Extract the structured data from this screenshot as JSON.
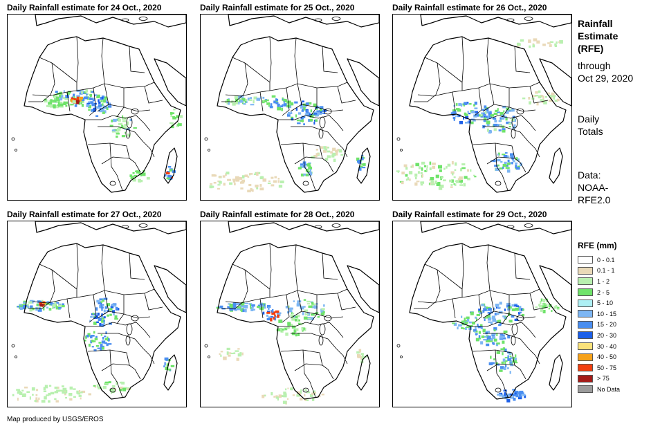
{
  "panels": [
    {
      "title": "Daily Rainfall estimate for 24 Oct., 2020"
    },
    {
      "title": "Daily Rainfall estimate for 25 Oct., 2020"
    },
    {
      "title": "Daily Rainfall estimate for 26 Oct., 2020"
    },
    {
      "title": "Daily Rainfall estimate for 27 Oct., 2020"
    },
    {
      "title": "Daily Rainfall estimate for 28 Oct., 2020"
    },
    {
      "title": "Daily Rainfall estimate for 29 Oct., 2020"
    }
  ],
  "sidebar": {
    "title_lines": [
      "Rainfall",
      "Estimate",
      "(RFE)"
    ],
    "through_lines": [
      "through",
      "Oct 29, 2020"
    ],
    "totals_lines": [
      "Daily",
      "Totals"
    ],
    "source_lines": [
      "Data:",
      "NOAA-",
      "RFE2.0"
    ]
  },
  "legend": {
    "title": "RFE (mm)",
    "items": [
      {
        "label": "0 - 0.1",
        "color": "#ffffff"
      },
      {
        "label": "0.1 - 1",
        "color": "#e9d9b8"
      },
      {
        "label": "1 - 2",
        "color": "#b9f0b0"
      },
      {
        "label": "2 - 5",
        "color": "#6fe36a"
      },
      {
        "label": "5 - 10",
        "color": "#aef0f4"
      },
      {
        "label": "10 - 15",
        "color": "#7db6f3"
      },
      {
        "label": "15 - 20",
        "color": "#4a8ef0"
      },
      {
        "label": "20 - 30",
        "color": "#1c5fe8"
      },
      {
        "label": "30 - 40",
        "color": "#fbe27a"
      },
      {
        "label": "40 - 50",
        "color": "#f6a21b"
      },
      {
        "label": "50 - 75",
        "color": "#f13f10"
      },
      {
        "label": "> 75",
        "color": "#a41b18"
      },
      {
        "label": "No Data",
        "color": "#9b9b9b"
      }
    ]
  },
  "footer": "Map produced by USGS/EROS"
}
